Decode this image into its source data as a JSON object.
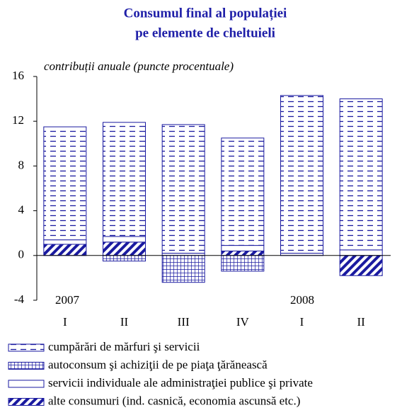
{
  "chart_data": {
    "type": "stacked_bar",
    "title": [
      "Consumul final al populației",
      "pe elemente de cheltuieli"
    ],
    "subtitle": "contribuții anuale (puncte procentuale)",
    "categories": [
      "I",
      "II",
      "III",
      "IV",
      "I",
      "II"
    ],
    "annotations": [
      "2007",
      "2008"
    ],
    "series": [
      {
        "name": "cumpărări de mărfuri şi servicii",
        "color": "#1a1aa0",
        "pattern": "dashes",
        "values": [
          10.1,
          10.2,
          11.5,
          9.6,
          14.1,
          13.5
        ]
      },
      {
        "name": "autoconsum şi achiziţii de pe piaţa ţărănească",
        "color": "#1a1aa0",
        "pattern": "grid",
        "values": [
          0,
          -0.5,
          -2.4,
          -1.4,
          0,
          0
        ]
      },
      {
        "name": "servicii individuale ale administraţiei publice şi private",
        "color": "#1a1aa0",
        "pattern": "none",
        "values": [
          0.4,
          0.5,
          0.2,
          0.5,
          0.2,
          0.5
        ]
      },
      {
        "name": "alte consumuri (ind. casnică, economia ascunsă etc.)",
        "color": "#1a1aa0",
        "pattern": "diagonal",
        "values": [
          1.0,
          1.2,
          0,
          0.4,
          0,
          -1.8
        ]
      }
    ],
    "ylim": [
      -4,
      16
    ],
    "yticks": [
      -4,
      0,
      4,
      8,
      12,
      16
    ]
  }
}
